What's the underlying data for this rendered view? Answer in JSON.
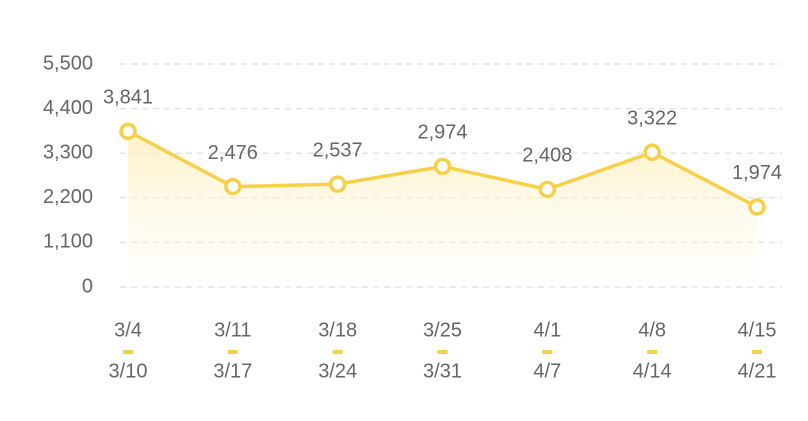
{
  "chart_data": {
    "type": "line",
    "categories": [
      "3/4",
      "3/11",
      "3/18",
      "3/25",
      "4/1",
      "4/8",
      "4/15"
    ],
    "category_ends": [
      "3/10",
      "3/17",
      "3/24",
      "3/31",
      "4/7",
      "4/14",
      "4/21"
    ],
    "values": [
      3841,
      2476,
      2537,
      2974,
      2408,
      3322,
      1974
    ],
    "value_labels": [
      "3,841",
      "2,476",
      "2,537",
      "2,974",
      "2,408",
      "3,322",
      "1,974"
    ],
    "color": "#f7d04a",
    "ylim": [
      0,
      5500
    ],
    "yticks": [
      0,
      {
        "value": 1100,
        "label": "1,100"
      },
      {
        "value": 2200,
        "label": "2,200"
      },
      {
        "value": 3300,
        "label": "3,300"
      },
      {
        "value": 4400,
        "label": "4,400"
      },
      {
        "value": 5500,
        "label": "5,500"
      }
    ],
    "grid": true
  }
}
